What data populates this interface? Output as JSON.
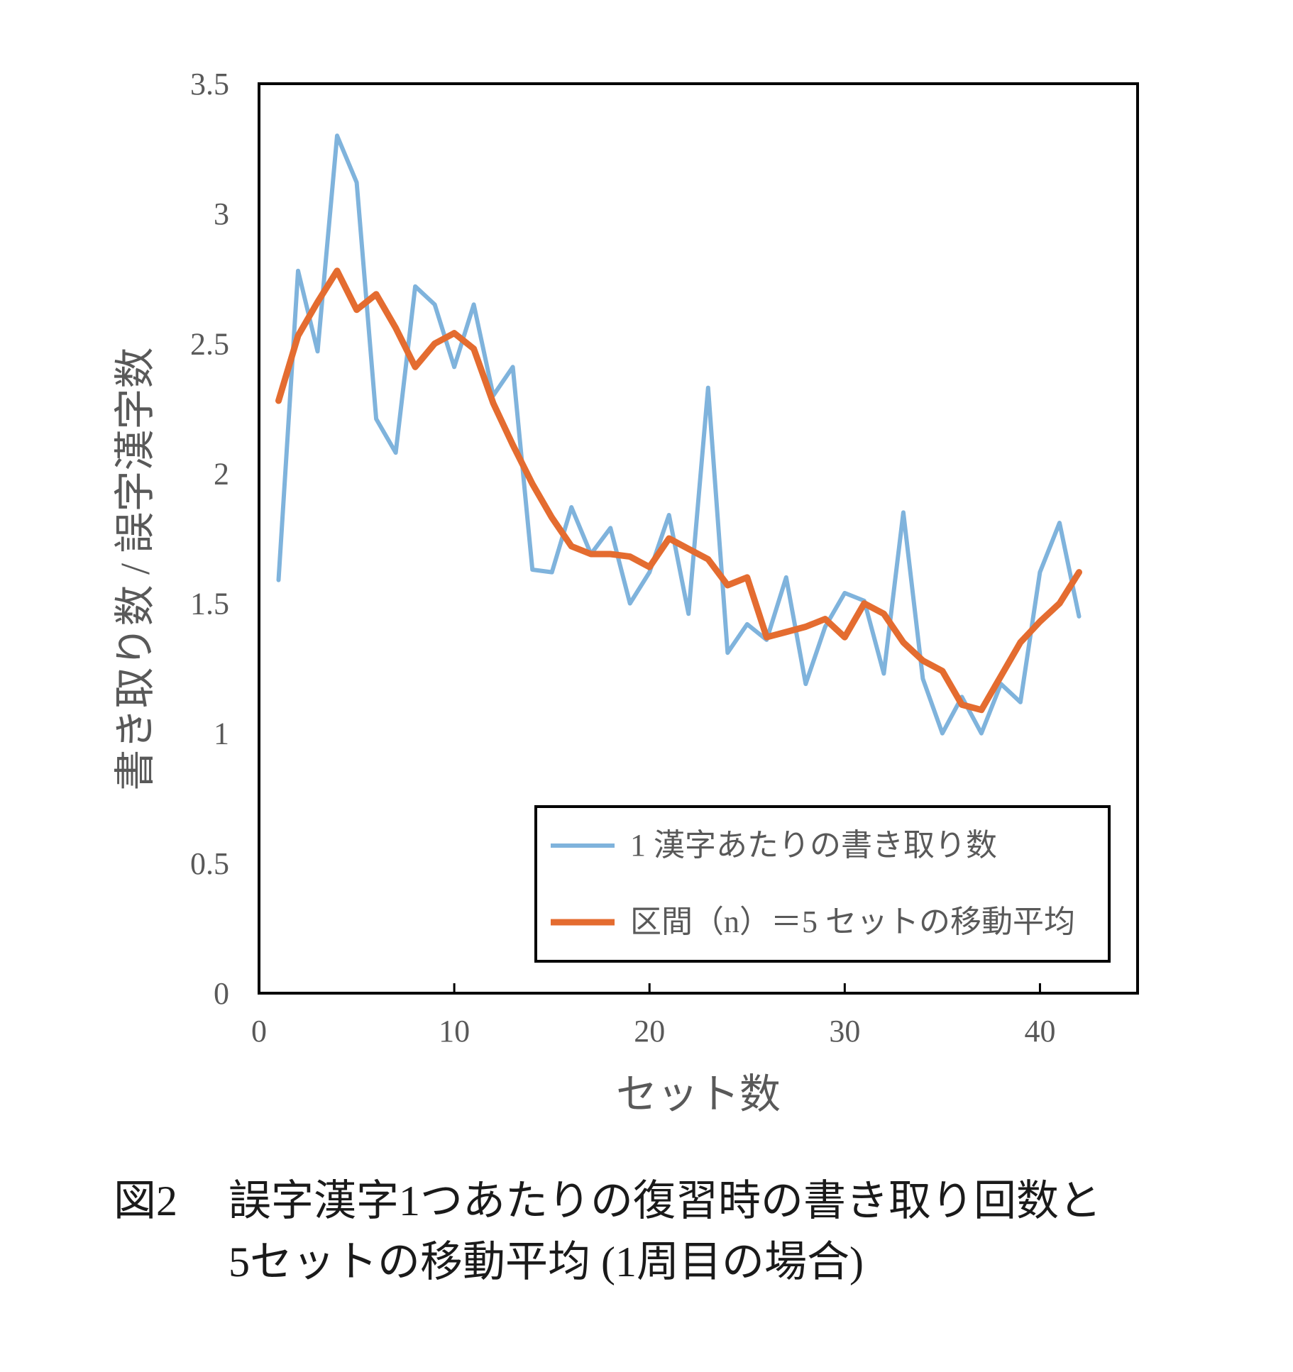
{
  "chart_data": {
    "type": "line",
    "xlabel": "セット数",
    "ylabel": "書き取り数 / 誤字漢字数",
    "xlim": [
      0,
      45
    ],
    "ylim": [
      0,
      3.5
    ],
    "xticks": [
      "0",
      "10",
      "20",
      "30",
      "40"
    ],
    "yticks": [
      "0",
      "0.5",
      "1",
      "1.5",
      "2",
      "2.5",
      "3",
      "3.5"
    ],
    "grid": false,
    "legend_position": "bottom-right",
    "x": [
      1,
      2,
      3,
      4,
      5,
      6,
      7,
      8,
      9,
      10,
      11,
      12,
      13,
      14,
      15,
      16,
      17,
      18,
      19,
      20,
      21,
      22,
      23,
      24,
      25,
      26,
      27,
      28,
      29,
      30,
      31,
      32,
      33,
      34,
      35,
      36,
      37,
      38,
      39,
      40,
      41,
      42
    ],
    "series": [
      {
        "name": "1 漢字あたりの書き取り数",
        "color": "#7fb3dc",
        "values": [
          1.59,
          2.78,
          2.47,
          3.3,
          3.12,
          2.21,
          2.08,
          2.72,
          2.65,
          2.41,
          2.65,
          2.3,
          2.41,
          1.63,
          1.62,
          1.87,
          1.69,
          1.79,
          1.5,
          1.62,
          1.84,
          1.46,
          2.33,
          1.31,
          1.42,
          1.36,
          1.6,
          1.19,
          1.41,
          1.54,
          1.51,
          1.23,
          1.85,
          1.21,
          1.0,
          1.14,
          1.0,
          1.19,
          1.12,
          1.62,
          1.81,
          1.45
        ]
      },
      {
        "name": "区間（n）＝5 セットの移動平均",
        "color": "#e46c30",
        "values": [
          2.28,
          2.53,
          2.66,
          2.78,
          2.63,
          2.69,
          2.56,
          2.41,
          2.5,
          2.54,
          2.48,
          2.27,
          2.11,
          1.96,
          1.83,
          1.72,
          1.69,
          1.69,
          1.68,
          1.64,
          1.75,
          1.71,
          1.67,
          1.57,
          1.6,
          1.37,
          1.39,
          1.41,
          1.44,
          1.37,
          1.5,
          1.46,
          1.35,
          1.28,
          1.24,
          1.11,
          1.09,
          1.22,
          1.35,
          1.43,
          1.5,
          1.62
        ]
      }
    ]
  },
  "caption": {
    "label": "図2",
    "line1": "誤字漢字1つあたりの復習時の書き取り回数と",
    "line2": "5セットの移動平均 (1周目の場合)"
  }
}
